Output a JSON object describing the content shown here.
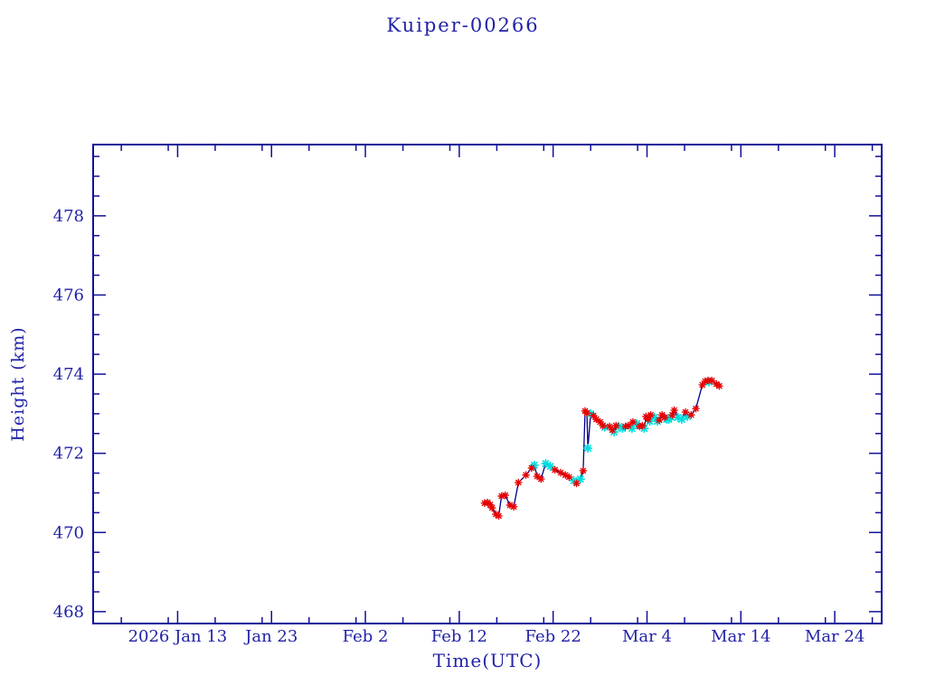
{
  "page": {
    "background": "#ffffff"
  },
  "chart_data": {
    "type": "line",
    "title": "Kuiper-00266",
    "xlabel": "Time(UTC)",
    "ylabel": "Height (km)",
    "grid": false,
    "legend": "none",
    "x_axis": {
      "unit": "day_of_year_2026",
      "range": [
        4,
        88
      ],
      "major_ticks": [
        {
          "day": 13,
          "label": "2026 Jan 13"
        },
        {
          "day": 23,
          "label": "Jan 23"
        },
        {
          "day": 33,
          "label": "Feb  2"
        },
        {
          "day": 43,
          "label": "Feb 12"
        },
        {
          "day": 53,
          "label": "Feb 22"
        },
        {
          "day": 63,
          "label": "Mar  4"
        },
        {
          "day": 73,
          "label": "Mar 14"
        },
        {
          "day": 83,
          "label": "Mar 24"
        }
      ],
      "minor_step_days": 5
    },
    "y_axis": {
      "range": [
        467.7,
        479.8
      ],
      "major_ticks": [
        468,
        470,
        472,
        474,
        476,
        478
      ],
      "minor_step": 0.5
    },
    "colors": {
      "line": "#00008b",
      "red_marker": "#e60000",
      "cyan_marker": "#00dede",
      "axis": "#10109a",
      "text": "#2222a8"
    },
    "series_legend": [
      {
        "name": "red-asterisk-points",
        "marker": "asterisk",
        "color_key": "red_marker"
      },
      {
        "name": "cyan-asterisk-points",
        "marker": "asterisk",
        "color_key": "cyan_marker"
      }
    ],
    "points_format": [
      "day_of_year_2026",
      "height_km",
      "marker: r=red c=cyan"
    ],
    "points": [
      [
        45.7,
        470.74,
        "r"
      ],
      [
        46.0,
        470.76,
        "r"
      ],
      [
        46.3,
        470.7,
        "r"
      ],
      [
        46.5,
        470.62,
        "r"
      ],
      [
        46.9,
        470.46,
        "r"
      ],
      [
        47.2,
        470.42,
        "r"
      ],
      [
        47.5,
        470.92,
        "r"
      ],
      [
        47.9,
        470.94,
        "r"
      ],
      [
        48.4,
        470.69,
        "r"
      ],
      [
        48.8,
        470.65,
        "r"
      ],
      [
        49.3,
        471.26,
        "r"
      ],
      [
        50.1,
        471.45,
        "r"
      ],
      [
        50.7,
        471.63,
        "r"
      ],
      [
        51.0,
        471.7,
        "c"
      ],
      [
        51.3,
        471.42,
        "r"
      ],
      [
        51.7,
        471.35,
        "r"
      ],
      [
        52.2,
        471.74,
        "c"
      ],
      [
        52.7,
        471.67,
        "c"
      ],
      [
        53.2,
        471.58,
        "r"
      ],
      [
        53.8,
        471.51,
        "r"
      ],
      [
        54.3,
        471.45,
        "r"
      ],
      [
        54.7,
        471.4,
        "r"
      ],
      [
        55.2,
        471.31,
        "c"
      ],
      [
        55.5,
        471.24,
        "r"
      ],
      [
        55.9,
        471.35,
        "c"
      ],
      [
        56.2,
        471.56,
        "r"
      ],
      [
        56.4,
        473.07,
        "r"
      ],
      [
        56.6,
        473.02,
        "r"
      ],
      [
        56.7,
        472.13,
        "c"
      ],
      [
        57.0,
        473.0,
        "c"
      ],
      [
        57.3,
        472.95,
        "r"
      ],
      [
        57.6,
        472.86,
        "r"
      ],
      [
        58.0,
        472.79,
        "r"
      ],
      [
        58.3,
        472.7,
        "r"
      ],
      [
        58.5,
        472.66,
        "c"
      ],
      [
        59.0,
        472.68,
        "r"
      ],
      [
        59.3,
        472.59,
        "r"
      ],
      [
        59.5,
        472.54,
        "c"
      ],
      [
        59.7,
        472.7,
        "r"
      ],
      [
        60.0,
        472.68,
        "c"
      ],
      [
        60.4,
        472.63,
        "c"
      ],
      [
        60.7,
        472.68,
        "r"
      ],
      [
        61.0,
        472.7,
        "r"
      ],
      [
        61.4,
        472.63,
        "c"
      ],
      [
        61.5,
        472.79,
        "r"
      ],
      [
        61.9,
        472.75,
        "c"
      ],
      [
        62.2,
        472.68,
        "r"
      ],
      [
        62.5,
        472.7,
        "r"
      ],
      [
        62.7,
        472.63,
        "c"
      ],
      [
        62.9,
        472.93,
        "r"
      ],
      [
        63.1,
        472.86,
        "r"
      ],
      [
        63.3,
        472.81,
        "c"
      ],
      [
        63.4,
        472.97,
        "r"
      ],
      [
        63.8,
        472.91,
        "c"
      ],
      [
        64.1,
        472.81,
        "c"
      ],
      [
        64.3,
        472.84,
        "r"
      ],
      [
        64.6,
        472.97,
        "r"
      ],
      [
        64.9,
        472.91,
        "r"
      ],
      [
        65.1,
        472.86,
        "c"
      ],
      [
        65.3,
        472.86,
        "c"
      ],
      [
        65.6,
        472.91,
        "c"
      ],
      [
        65.7,
        472.97,
        "r"
      ],
      [
        65.9,
        473.09,
        "r"
      ],
      [
        66.3,
        472.91,
        "c"
      ],
      [
        66.7,
        472.86,
        "c"
      ],
      [
        67.1,
        473.04,
        "r"
      ],
      [
        67.3,
        472.93,
        "c"
      ],
      [
        67.7,
        472.97,
        "r"
      ],
      [
        68.2,
        473.13,
        "r"
      ],
      [
        68.9,
        473.73,
        "r"
      ],
      [
        69.2,
        473.82,
        "r"
      ],
      [
        69.5,
        473.84,
        "r"
      ],
      [
        69.6,
        473.8,
        "c"
      ],
      [
        69.9,
        473.84,
        "r"
      ],
      [
        70.4,
        473.75,
        "r"
      ],
      [
        70.7,
        473.7,
        "r"
      ]
    ]
  }
}
